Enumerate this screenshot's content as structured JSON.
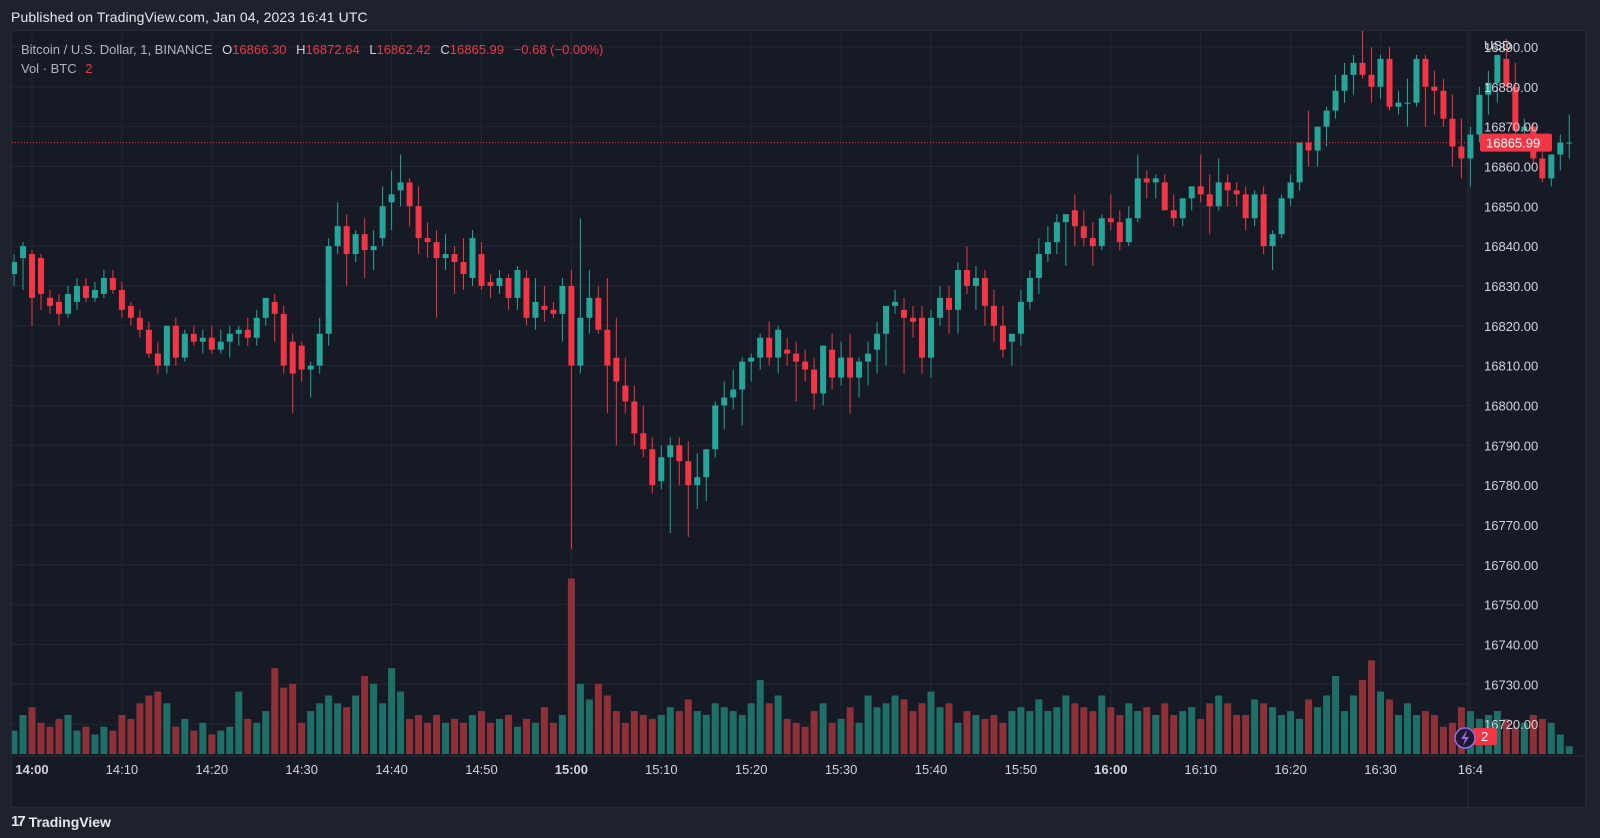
{
  "header": {
    "published": "Published on TradingView.com, Jan 04, 2023 16:41 UTC"
  },
  "legend": {
    "symbol": "Bitcoin / U.S. Dollar, 1, BINANCE",
    "o_label": "O",
    "o_value": "16866.30",
    "h_label": "H",
    "h_value": "16872.64",
    "l_label": "L",
    "l_value": "16862.42",
    "c_label": "C",
    "c_value": "16865.99",
    "change": "−0.68 (−0.00%)",
    "vol_label": "Vol · BTC",
    "vol_value": "2"
  },
  "footer": {
    "brand": "TradingView",
    "logo_text": "17"
  },
  "colors": {
    "up": "#26a69a",
    "down": "#f23645",
    "up_vol": "#1f6f69",
    "down_vol": "#8e3037",
    "bg": "#161a25",
    "grid": "#232733"
  },
  "chart_data": {
    "type": "candlestick",
    "currency": "USD",
    "last_price": "16865.99",
    "last_volume": "2",
    "ylim": [
      16712,
      16894
    ],
    "y_ticks": [
      "16890.00",
      "16880.00",
      "16870.00",
      "16860.00",
      "16850.00",
      "16840.00",
      "16830.00",
      "16820.00",
      "16810.00",
      "16800.00",
      "16790.00",
      "16780.00",
      "16770.00",
      "16760.00",
      "16750.00",
      "16740.00",
      "16730.00",
      "16720.00"
    ],
    "x_ticks": [
      {
        "label": "14:00",
        "minute": 0,
        "bold": true
      },
      {
        "label": "14:10",
        "minute": 10,
        "bold": false
      },
      {
        "label": "14:20",
        "minute": 20,
        "bold": false
      },
      {
        "label": "14:30",
        "minute": 30,
        "bold": false
      },
      {
        "label": "14:40",
        "minute": 40,
        "bold": false
      },
      {
        "label": "14:50",
        "minute": 50,
        "bold": false
      },
      {
        "label": "15:00",
        "minute": 60,
        "bold": true
      },
      {
        "label": "15:10",
        "minute": 70,
        "bold": false
      },
      {
        "label": "15:20",
        "minute": 80,
        "bold": false
      },
      {
        "label": "15:30",
        "minute": 90,
        "bold": false
      },
      {
        "label": "15:40",
        "minute": 100,
        "bold": false
      },
      {
        "label": "15:50",
        "minute": 110,
        "bold": false
      },
      {
        "label": "16:00",
        "minute": 120,
        "bold": true
      },
      {
        "label": "16:10",
        "minute": 130,
        "bold": false
      },
      {
        "label": "16:20",
        "minute": 140,
        "bold": false
      },
      {
        "label": "16:30",
        "minute": 150,
        "bold": false
      },
      {
        "label": "16:4",
        "minute": 160,
        "bold": false
      }
    ],
    "start_minute": -2,
    "candles": [
      [
        16833,
        16838,
        16830,
        16836,
        6
      ],
      [
        16837,
        16841,
        16829,
        16840,
        10
      ],
      [
        16838,
        16839,
        16820,
        16827,
        12
      ],
      [
        16837,
        16838,
        16824,
        16828,
        8
      ],
      [
        16827,
        16829,
        16823,
        16825,
        7
      ],
      [
        16826,
        16828,
        16820,
        16823,
        9
      ],
      [
        16823,
        16830,
        16822,
        16828,
        10
      ],
      [
        16826,
        16832,
        16824,
        16830,
        6
      ],
      [
        16830,
        16832,
        16826,
        16827,
        7
      ],
      [
        16827,
        16831,
        16826,
        16829,
        5
      ],
      [
        16828,
        16834,
        16827,
        16832,
        7
      ],
      [
        16832,
        16834,
        16828,
        16829,
        6
      ],
      [
        16829,
        16831,
        16822,
        16824,
        10
      ],
      [
        16825,
        16826,
        16820,
        16822,
        9
      ],
      [
        16822,
        16824,
        16817,
        16819,
        13
      ],
      [
        16819,
        16821,
        16812,
        16813,
        15
      ],
      [
        16813,
        16816,
        16808,
        16810,
        16
      ],
      [
        16810,
        16820,
        16808,
        16820,
        13
      ],
      [
        16820,
        16822,
        16810,
        16812,
        7
      ],
      [
        16812,
        16819,
        16811,
        16818,
        9
      ],
      [
        16818,
        16820,
        16815,
        16816,
        6
      ],
      [
        16816,
        16819,
        16813,
        16817,
        8
      ],
      [
        16817,
        16820,
        16813,
        16814,
        5
      ],
      [
        16814,
        16819,
        16813,
        16816,
        6
      ],
      [
        16816,
        16820,
        16812,
        16818,
        7
      ],
      [
        16818,
        16820,
        16815,
        16819,
        16
      ],
      [
        16819,
        16822,
        16815,
        16817,
        9
      ],
      [
        16817,
        16824,
        16815,
        16822,
        8
      ],
      [
        16822,
        16827,
        16820,
        16827,
        11
      ],
      [
        16826,
        16828,
        16816,
        16823,
        22
      ],
      [
        16823,
        16825,
        16808,
        16810,
        17
      ],
      [
        16816,
        16818,
        16798,
        16808,
        18
      ],
      [
        16815,
        16816,
        16806,
        16809,
        8
      ],
      [
        16809,
        16811,
        16802,
        16810,
        11
      ],
      [
        16810,
        16822,
        16808,
        16818,
        13
      ],
      [
        16818,
        16842,
        16815,
        16840,
        15
      ],
      [
        16840,
        16851,
        16838,
        16845,
        13
      ],
      [
        16845,
        16848,
        16830,
        16838,
        12
      ],
      [
        16838,
        16844,
        16836,
        16843,
        15
      ],
      [
        16843,
        16847,
        16832,
        16839,
        20
      ],
      [
        16839,
        16844,
        16834,
        16840,
        18
      ],
      [
        16842,
        16855,
        16840,
        16850,
        13
      ],
      [
        16851,
        16859,
        16844,
        16853,
        22
      ],
      [
        16854,
        16863,
        16850,
        16856,
        16
      ],
      [
        16856,
        16857,
        16845,
        16850,
        9
      ],
      [
        16850,
        16855,
        16838,
        16842,
        10
      ],
      [
        16842,
        16846,
        16837,
        16841,
        8
      ],
      [
        16841,
        16844,
        16822,
        16837,
        10
      ],
      [
        16837,
        16843,
        16834,
        16838,
        8
      ],
      [
        16838,
        16840,
        16828,
        16836,
        9
      ],
      [
        16836,
        16842,
        16829,
        16833,
        8
      ],
      [
        16832,
        16844,
        16830,
        16842,
        10
      ],
      [
        16838,
        16841,
        16829,
        16830,
        11
      ],
      [
        16831,
        16833,
        16827,
        16830,
        8
      ],
      [
        16830,
        16834,
        16828,
        16832,
        9
      ],
      [
        16832,
        16833,
        16824,
        16827,
        10
      ],
      [
        16827,
        16835,
        16824,
        16834,
        7
      ],
      [
        16832,
        16834,
        16820,
        16822,
        9
      ],
      [
        16822,
        16832,
        16819,
        16826,
        8
      ],
      [
        16825,
        16830,
        16821,
        16824,
        12
      ],
      [
        16824,
        16826,
        16822,
        16823,
        8
      ],
      [
        16823,
        16832,
        16816,
        16830,
        10
      ],
      [
        16830,
        16834,
        16764,
        16810,
        45
      ],
      [
        16810,
        16847,
        16808,
        16822,
        18
      ],
      [
        16822,
        16834,
        16818,
        16827,
        14
      ],
      [
        16827,
        16830,
        16818,
        16819,
        18
      ],
      [
        16819,
        16832,
        16798,
        16810,
        15
      ],
      [
        16812,
        16822,
        16790,
        16806,
        11
      ],
      [
        16805,
        16812,
        16798,
        16801,
        8
      ],
      [
        16801,
        16805,
        16790,
        16793,
        11
      ],
      [
        16793,
        16800,
        16787,
        16789,
        10
      ],
      [
        16789,
        16792,
        16778,
        16780,
        9
      ],
      [
        16781,
        16790,
        16779,
        16787,
        10
      ],
      [
        16787,
        16792,
        16768,
        16790,
        12
      ],
      [
        16790,
        16792,
        16780,
        16786,
        11
      ],
      [
        16786,
        16791,
        16767,
        16780,
        14
      ],
      [
        16780,
        16788,
        16774,
        16782,
        11
      ],
      [
        16782,
        16789,
        16776,
        16789,
        10
      ],
      [
        16789,
        16801,
        16787,
        16800,
        13
      ],
      [
        16800,
        16806,
        16794,
        16802,
        12
      ],
      [
        16802,
        16809,
        16799,
        16804,
        11
      ],
      [
        16804,
        16812,
        16795,
        16811,
        10
      ],
      [
        16811,
        16813,
        16806,
        16812,
        13
      ],
      [
        16812,
        16818,
        16809,
        16817,
        19
      ],
      [
        16817,
        16821,
        16810,
        16812,
        13
      ],
      [
        16812,
        16820,
        16808,
        16819,
        15
      ],
      [
        16814,
        16817,
        16810,
        16813,
        9
      ],
      [
        16813,
        16816,
        16801,
        16811,
        8
      ],
      [
        16811,
        16814,
        16806,
        16809,
        7
      ],
      [
        16809,
        16812,
        16799,
        16803,
        11
      ],
      [
        16803,
        16815,
        16800,
        16815,
        13
      ],
      [
        16814,
        16818,
        16804,
        16807,
        8
      ],
      [
        16807,
        16816,
        16805,
        16812,
        9
      ],
      [
        16812,
        16818,
        16798,
        16807,
        12
      ],
      [
        16807,
        16812,
        16802,
        16811,
        8
      ],
      [
        16811,
        16816,
        16805,
        16813,
        15
      ],
      [
        16814,
        16821,
        16808,
        16818,
        12
      ],
      [
        16818,
        16825,
        16810,
        16825,
        13
      ],
      [
        16825,
        16829,
        16823,
        16826,
        15
      ],
      [
        16824,
        16827,
        16808,
        16822,
        14
      ],
      [
        16822,
        16825,
        16817,
        16821,
        11
      ],
      [
        16822,
        16825,
        16808,
        16812,
        13
      ],
      [
        16812,
        16824,
        16807,
        16822,
        16
      ],
      [
        16822,
        16830,
        16820,
        16827,
        12
      ],
      [
        16827,
        16830,
        16818,
        16824,
        13
      ],
      [
        16824,
        16836,
        16818,
        16834,
        8
      ],
      [
        16834,
        16840,
        16828,
        16830,
        11
      ],
      [
        16830,
        16835,
        16824,
        16832,
        10
      ],
      [
        16832,
        16834,
        16820,
        16825,
        9
      ],
      [
        16825,
        16829,
        16816,
        16820,
        10
      ],
      [
        16820,
        16825,
        16812,
        16814,
        8
      ],
      [
        16816,
        16818,
        16810,
        16818,
        11
      ],
      [
        16818,
        16829,
        16815,
        16826,
        12
      ],
      [
        16826,
        16834,
        16824,
        16832,
        11
      ],
      [
        16832,
        16842,
        16828,
        16838,
        14
      ],
      [
        16838,
        16845,
        16836,
        16841,
        11
      ],
      [
        16841,
        16848,
        16838,
        16846,
        12
      ],
      [
        16846,
        16848,
        16835,
        16848,
        15
      ],
      [
        16849,
        16853,
        16840,
        16845,
        13
      ],
      [
        16845,
        16849,
        16840,
        16842,
        12
      ],
      [
        16842,
        16846,
        16835,
        16840,
        11
      ],
      [
        16840,
        16848,
        16839,
        16847,
        15
      ],
      [
        16847,
        16853,
        16844,
        16846,
        12
      ],
      [
        16846,
        16849,
        16839,
        16841,
        10
      ],
      [
        16841,
        16850,
        16840,
        16847,
        13
      ],
      [
        16847,
        16863,
        16846,
        16857,
        11
      ],
      [
        16857,
        16859,
        16852,
        16856,
        12
      ],
      [
        16856,
        16858,
        16852,
        16857,
        10
      ],
      [
        16856,
        16858,
        16849,
        16849,
        13
      ],
      [
        16849,
        16853,
        16845,
        16847,
        10
      ],
      [
        16847,
        16852,
        16845,
        16852,
        11
      ],
      [
        16852,
        16854,
        16849,
        16855,
        12
      ],
      [
        16855,
        16863,
        16851,
        16853,
        9
      ],
      [
        16853,
        16858,
        16843,
        16850,
        13
      ],
      [
        16850,
        16862,
        16849,
        16856,
        15
      ],
      [
        16856,
        16858,
        16850,
        16854,
        13
      ],
      [
        16854,
        16856,
        16850,
        16853,
        10
      ],
      [
        16853,
        16855,
        16844,
        16847,
        10
      ],
      [
        16847,
        16854,
        16845,
        16853,
        14
      ],
      [
        16853,
        16855,
        16838,
        16840,
        13
      ],
      [
        16840,
        16844,
        16834,
        16843,
        12
      ],
      [
        16843,
        16853,
        16842,
        16852,
        10
      ],
      [
        16852,
        16858,
        16850,
        16856,
        11
      ],
      [
        16856,
        16866,
        16854,
        16866,
        9
      ],
      [
        16866,
        16874,
        16860,
        16864,
        14
      ],
      [
        16864,
        16870,
        16860,
        16870,
        12
      ],
      [
        16870,
        16875,
        16865,
        16874,
        15
      ],
      [
        16874,
        16883,
        16872,
        16879,
        20
      ],
      [
        16879,
        16886,
        16876,
        16883,
        11
      ],
      [
        16883,
        16888,
        16878,
        16886,
        15
      ],
      [
        16886,
        16896,
        16882,
        16883,
        19
      ],
      [
        16883,
        16890,
        16876,
        16880,
        24
      ],
      [
        16880,
        16888,
        16877,
        16887,
        16
      ],
      [
        16887,
        16890,
        16874,
        16875,
        14
      ],
      [
        16875,
        16879,
        16873,
        16876,
        10
      ],
      [
        16876,
        16882,
        16870,
        16876,
        13
      ],
      [
        16876,
        16888,
        16875,
        16887,
        10
      ],
      [
        16887,
        16888,
        16870,
        16880,
        11
      ],
      [
        16880,
        16884,
        16873,
        16879,
        10
      ],
      [
        16879,
        16882,
        16870,
        16872,
        7
      ],
      [
        16872,
        16878,
        16860,
        16865,
        8
      ],
      [
        16865,
        16872,
        16857,
        16862,
        12
      ],
      [
        16862,
        16870,
        16855,
        16868,
        11
      ],
      [
        16868,
        16880,
        16866,
        16878,
        9
      ],
      [
        16878,
        16884,
        16873,
        16881,
        10
      ],
      [
        16881,
        16888,
        16876,
        16888,
        11
      ],
      [
        16887,
        16892,
        16880,
        16880,
        9
      ],
      [
        16880,
        16886,
        16867,
        16869,
        7
      ],
      [
        16869,
        16872,
        16866,
        16870,
        8
      ],
      [
        16870,
        16871,
        16861,
        16862,
        10
      ],
      [
        16862,
        16867,
        16856,
        16857,
        9
      ],
      [
        16857,
        16862,
        16855,
        16863,
        8
      ],
      [
        16863,
        16868,
        16859,
        16866,
        5
      ],
      [
        16866,
        16873,
        16862,
        16866,
        2
      ]
    ]
  }
}
